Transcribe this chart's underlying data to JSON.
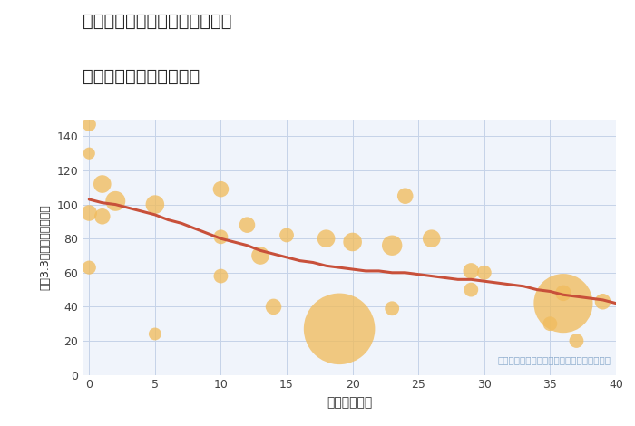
{
  "title_line1": "兵庫県神戸市須磨区上細沢町の",
  "title_line2": "築年数別中古戸建て価格",
  "xlabel": "築年数（年）",
  "ylabel": "坪（3.3㎡）単価（万円）",
  "bg_color": "#ffffff",
  "plot_bg_color": "#f0f4fb",
  "grid_color": "#c5d2e8",
  "annotation": "円の大きさは、取引のあった物件面積を示す",
  "annotation_color": "#8aaacc",
  "scatter_color": "#f0bc5e",
  "scatter_alpha": 0.78,
  "line_color": "#c8503a",
  "line_width": 2.2,
  "xlim": [
    -0.5,
    40
  ],
  "ylim": [
    0,
    150
  ],
  "xticks": [
    0,
    5,
    10,
    15,
    20,
    25,
    30,
    35,
    40
  ],
  "yticks": [
    0,
    20,
    40,
    60,
    80,
    100,
    120,
    140
  ],
  "scatter_x": [
    0,
    0,
    0,
    0,
    1,
    1,
    2,
    5,
    5,
    10,
    10,
    10,
    12,
    13,
    14,
    15,
    18,
    19,
    20,
    23,
    23,
    24,
    26,
    29,
    29,
    30,
    35,
    36,
    36,
    37,
    39
  ],
  "scatter_y": [
    147,
    130,
    95,
    63,
    112,
    93,
    102,
    100,
    24,
    109,
    81,
    58,
    88,
    70,
    40,
    82,
    80,
    27,
    78,
    76,
    39,
    105,
    80,
    61,
    50,
    60,
    30,
    48,
    42,
    20,
    43
  ],
  "scatter_size": [
    120,
    90,
    160,
    120,
    200,
    160,
    250,
    220,
    100,
    160,
    130,
    130,
    160,
    200,
    160,
    130,
    200,
    3200,
    220,
    260,
    130,
    160,
    200,
    160,
    130,
    130,
    130,
    160,
    2200,
    130,
    160
  ],
  "trend_x": [
    0,
    1,
    2,
    3,
    4,
    5,
    6,
    7,
    8,
    9,
    10,
    11,
    12,
    13,
    14,
    15,
    16,
    17,
    18,
    19,
    20,
    21,
    22,
    23,
    24,
    25,
    26,
    27,
    28,
    29,
    30,
    31,
    32,
    33,
    34,
    35,
    36,
    37,
    38,
    39,
    40
  ],
  "trend_y": [
    103,
    101,
    100,
    98,
    96,
    94,
    91,
    89,
    86,
    83,
    80,
    78,
    76,
    73,
    71,
    69,
    67,
    66,
    64,
    63,
    62,
    61,
    61,
    60,
    60,
    59,
    58,
    57,
    56,
    56,
    55,
    54,
    53,
    52,
    50,
    49,
    47,
    46,
    45,
    44,
    42
  ]
}
